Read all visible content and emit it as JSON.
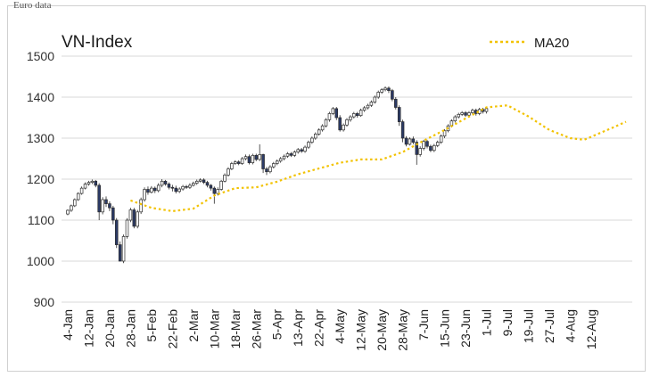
{
  "header_fragment": "Euro data",
  "chart_data": {
    "type": "candlestick",
    "title": "VN-Index",
    "xlabel": "",
    "ylabel": "",
    "ylim": [
      900,
      1500
    ],
    "yticks": [
      900,
      1000,
      1100,
      1200,
      1300,
      1400,
      1500
    ],
    "grid": true,
    "legend_position": "top-right",
    "x_tick_labels": [
      "4-Jan",
      "12-Jan",
      "20-Jan",
      "28-Jan",
      "5-Feb",
      "22-Feb",
      "2-Mar",
      "10-Mar",
      "18-Mar",
      "26-Mar",
      "5-Apr",
      "13-Apr",
      "22-Apr",
      "4-May",
      "12-May",
      "20-May",
      "28-May",
      "7-Jun",
      "15-Jun",
      "23-Jun",
      "1-Jul",
      "9-Jul",
      "19-Jul",
      "27-Jul",
      "4-Aug",
      "12-Aug"
    ],
    "x_tick_positions": [
      0,
      6,
      12,
      18,
      24,
      30,
      36,
      42,
      48,
      54,
      60,
      66,
      72,
      78,
      84,
      90,
      96,
      102,
      108,
      114,
      120,
      126,
      132,
      138,
      144,
      150
    ],
    "colors": {
      "up": "#ffffff",
      "down": "#2b3a67",
      "outline": "#2b2b2b",
      "ma": "#f2c200",
      "grid": "#d9d9d9"
    },
    "series": [
      {
        "name": "MA20",
        "type": "line",
        "style": "dotted",
        "points": [
          [
            18,
            1148
          ],
          [
            24,
            1130
          ],
          [
            30,
            1122
          ],
          [
            36,
            1128
          ],
          [
            42,
            1160
          ],
          [
            48,
            1178
          ],
          [
            54,
            1180
          ],
          [
            60,
            1194
          ],
          [
            66,
            1212
          ],
          [
            72,
            1226
          ],
          [
            78,
            1240
          ],
          [
            84,
            1248
          ],
          [
            90,
            1248
          ],
          [
            96,
            1266
          ],
          [
            102,
            1294
          ],
          [
            108,
            1320
          ],
          [
            114,
            1348
          ],
          [
            120,
            1375
          ],
          [
            126,
            1380
          ],
          [
            132,
            1353
          ],
          [
            138,
            1320
          ],
          [
            144,
            1300
          ],
          [
            148,
            1296
          ],
          [
            156,
            1325
          ],
          [
            160,
            1340
          ]
        ]
      }
    ],
    "candles": [
      [
        1115,
        1124,
        1112,
        1126
      ],
      [
        1124,
        1135,
        1120,
        1138
      ],
      [
        1135,
        1150,
        1132,
        1153
      ],
      [
        1150,
        1165,
        1147,
        1168
      ],
      [
        1165,
        1178,
        1162,
        1182
      ],
      [
        1178,
        1188,
        1175,
        1192
      ],
      [
        1188,
        1192,
        1184,
        1196
      ],
      [
        1192,
        1195,
        1188,
        1199
      ],
      [
        1195,
        1185,
        1180,
        1198
      ],
      [
        1185,
        1120,
        1100,
        1190
      ],
      [
        1120,
        1150,
        1114,
        1156
      ],
      [
        1150,
        1140,
        1132,
        1158
      ],
      [
        1140,
        1130,
        1122,
        1146
      ],
      [
        1130,
        1100,
        1090,
        1135
      ],
      [
        1100,
        1040,
        1032,
        1105
      ],
      [
        1040,
        1000,
        1000,
        1048
      ],
      [
        1000,
        1060,
        995,
        1065
      ],
      [
        1060,
        1100,
        1055,
        1105
      ],
      [
        1100,
        1125,
        1095,
        1130
      ],
      [
        1125,
        1085,
        1080,
        1130
      ],
      [
        1085,
        1120,
        1080,
        1125
      ],
      [
        1120,
        1150,
        1115,
        1155
      ],
      [
        1150,
        1175,
        1145,
        1180
      ],
      [
        1175,
        1168,
        1162,
        1182
      ],
      [
        1168,
        1178,
        1165,
        1183
      ],
      [
        1178,
        1172,
        1166,
        1182
      ],
      [
        1172,
        1185,
        1168,
        1190
      ],
      [
        1185,
        1195,
        1180,
        1200
      ],
      [
        1195,
        1188,
        1184,
        1198
      ],
      [
        1188,
        1180,
        1175,
        1192
      ],
      [
        1180,
        1178,
        1170,
        1186
      ],
      [
        1178,
        1170,
        1165,
        1184
      ],
      [
        1170,
        1176,
        1166,
        1180
      ],
      [
        1176,
        1182,
        1172,
        1186
      ],
      [
        1182,
        1180,
        1176,
        1186
      ],
      [
        1180,
        1185,
        1176,
        1190
      ],
      [
        1185,
        1190,
        1182,
        1194
      ],
      [
        1190,
        1195,
        1186,
        1199
      ],
      [
        1195,
        1198,
        1192,
        1202
      ],
      [
        1198,
        1192,
        1188,
        1202
      ],
      [
        1192,
        1185,
        1180,
        1196
      ],
      [
        1185,
        1178,
        1172,
        1188
      ],
      [
        1178,
        1165,
        1140,
        1182
      ],
      [
        1165,
        1175,
        1160,
        1180
      ],
      [
        1175,
        1195,
        1172,
        1198
      ],
      [
        1195,
        1210,
        1192,
        1214
      ],
      [
        1210,
        1225,
        1206,
        1229
      ],
      [
        1225,
        1238,
        1222,
        1242
      ],
      [
        1238,
        1242,
        1235,
        1246
      ],
      [
        1242,
        1238,
        1234,
        1246
      ],
      [
        1238,
        1250,
        1235,
        1254
      ],
      [
        1250,
        1255,
        1246,
        1260
      ],
      [
        1255,
        1240,
        1236,
        1260
      ],
      [
        1240,
        1258,
        1236,
        1262
      ],
      [
        1258,
        1248,
        1244,
        1262
      ],
      [
        1248,
        1260,
        1244,
        1285
      ],
      [
        1260,
        1225,
        1215,
        1262
      ],
      [
        1225,
        1218,
        1210,
        1230
      ],
      [
        1218,
        1230,
        1214,
        1234
      ],
      [
        1230,
        1238,
        1226,
        1242
      ],
      [
        1238,
        1244,
        1234,
        1248
      ],
      [
        1244,
        1250,
        1240,
        1254
      ],
      [
        1250,
        1256,
        1246,
        1260
      ],
      [
        1256,
        1262,
        1252,
        1266
      ],
      [
        1262,
        1258,
        1254,
        1266
      ],
      [
        1258,
        1266,
        1254,
        1270
      ],
      [
        1266,
        1272,
        1262,
        1276
      ],
      [
        1272,
        1268,
        1264,
        1276
      ],
      [
        1268,
        1278,
        1264,
        1282
      ],
      [
        1278,
        1290,
        1274,
        1294
      ],
      [
        1290,
        1300,
        1286,
        1304
      ],
      [
        1300,
        1310,
        1296,
        1314
      ],
      [
        1310,
        1320,
        1306,
        1324
      ],
      [
        1320,
        1330,
        1316,
        1334
      ],
      [
        1330,
        1345,
        1326,
        1349
      ],
      [
        1345,
        1360,
        1340,
        1364
      ],
      [
        1360,
        1372,
        1356,
        1376
      ],
      [
        1372,
        1350,
        1344,
        1376
      ],
      [
        1350,
        1320,
        1316,
        1356
      ],
      [
        1320,
        1332,
        1316,
        1336
      ],
      [
        1332,
        1345,
        1328,
        1349
      ],
      [
        1345,
        1352,
        1340,
        1356
      ],
      [
        1352,
        1360,
        1348,
        1364
      ],
      [
        1360,
        1355,
        1350,
        1364
      ],
      [
        1355,
        1368,
        1352,
        1372
      ],
      [
        1368,
        1374,
        1364,
        1378
      ],
      [
        1374,
        1380,
        1370,
        1384
      ],
      [
        1380,
        1388,
        1376,
        1392
      ],
      [
        1388,
        1400,
        1384,
        1404
      ],
      [
        1400,
        1412,
        1396,
        1416
      ],
      [
        1412,
        1418,
        1408,
        1422
      ],
      [
        1418,
        1422,
        1414,
        1426
      ],
      [
        1422,
        1416,
        1410,
        1426
      ],
      [
        1416,
        1395,
        1390,
        1420
      ],
      [
        1395,
        1375,
        1370,
        1400
      ],
      [
        1375,
        1340,
        1330,
        1380
      ],
      [
        1340,
        1300,
        1290,
        1345
      ],
      [
        1300,
        1285,
        1280,
        1305
      ],
      [
        1285,
        1298,
        1282,
        1302
      ],
      [
        1298,
        1290,
        1285,
        1304
      ],
      [
        1290,
        1260,
        1235,
        1295
      ],
      [
        1260,
        1275,
        1255,
        1280
      ],
      [
        1275,
        1292,
        1270,
        1296
      ],
      [
        1292,
        1280,
        1275,
        1296
      ],
      [
        1280,
        1270,
        1266,
        1284
      ],
      [
        1270,
        1282,
        1266,
        1286
      ],
      [
        1282,
        1290,
        1278,
        1294
      ],
      [
        1290,
        1305,
        1286,
        1309
      ],
      [
        1305,
        1318,
        1300,
        1322
      ],
      [
        1318,
        1330,
        1314,
        1334
      ],
      [
        1330,
        1342,
        1326,
        1346
      ],
      [
        1342,
        1352,
        1338,
        1356
      ],
      [
        1352,
        1358,
        1348,
        1362
      ],
      [
        1358,
        1362,
        1354,
        1366
      ],
      [
        1362,
        1356,
        1352,
        1366
      ],
      [
        1356,
        1362,
        1350,
        1366
      ],
      [
        1362,
        1368,
        1358,
        1372
      ],
      [
        1368,
        1360,
        1355,
        1372
      ],
      [
        1360,
        1370,
        1356,
        1374
      ],
      [
        1370,
        1365,
        1360,
        1374
      ],
      [
        1365,
        1372,
        1360,
        1376
      ]
    ]
  }
}
